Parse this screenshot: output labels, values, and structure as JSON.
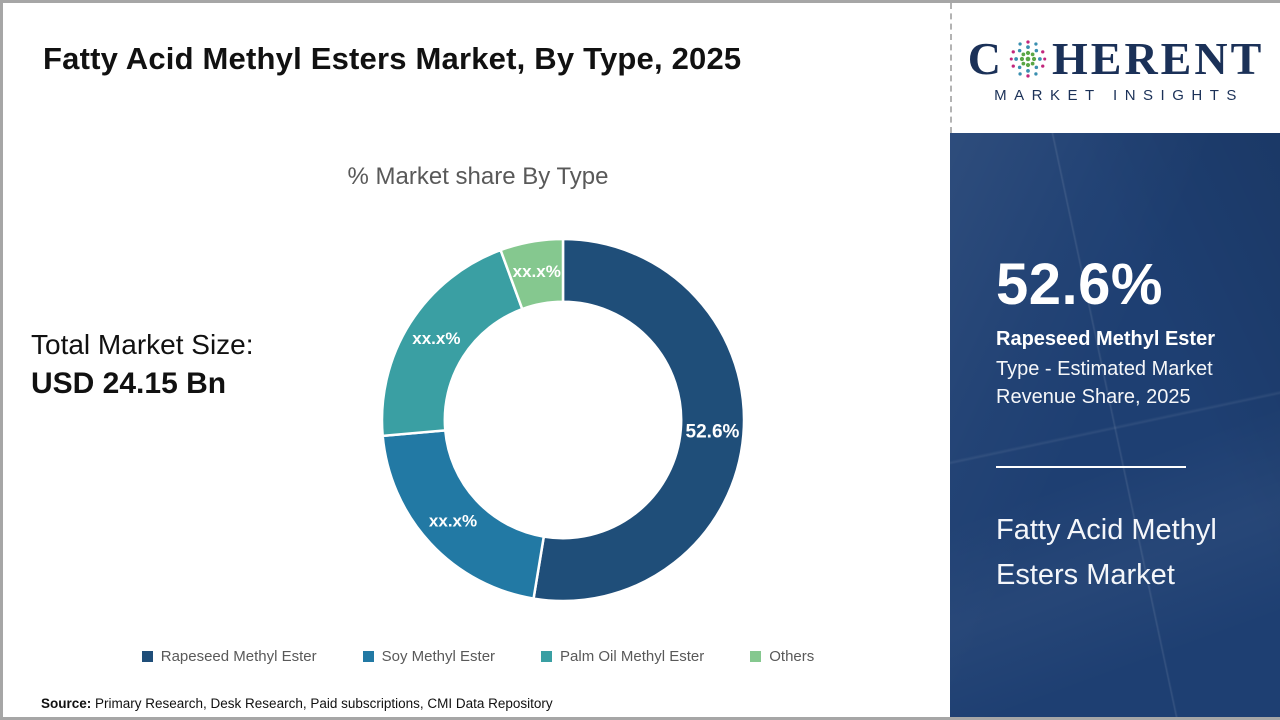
{
  "header": {
    "title": "Fatty Acid Methyl Esters Market, By Type, 2025"
  },
  "logo": {
    "word_start": "C",
    "word_end": "HERENT",
    "subtitle": "MARKET INSIGHTS",
    "brand_color": "#1b3158"
  },
  "chart_data": {
    "type": "pie",
    "donut": true,
    "title": "% Market share By Type",
    "inner_ratio": 0.653,
    "start_angle_deg": 0,
    "direction": "clockwise",
    "legend_position": "bottom",
    "segments": [
      {
        "label": "Rapeseed Methyl Ester",
        "value": 52.6,
        "display": "52.6%",
        "color": "#1f4e79"
      },
      {
        "label": "Soy Methyl Ester",
        "value": 21.0,
        "display": "xx.x%",
        "color": "#2279a4"
      },
      {
        "label": "Palm Oil Methyl Ester",
        "value": 20.8,
        "display": "xx.x%",
        "color": "#3a9fa3"
      },
      {
        "label": "Others",
        "value": 5.6,
        "display": "xx.x%",
        "color": "#85c88f"
      }
    ]
  },
  "market_size": {
    "label": "Total Market Size:",
    "value": "USD 24.15 Bn"
  },
  "sidebar": {
    "panel_bg": "#1e3f72",
    "stat_value": "52.6%",
    "stat_label_bold": "Rapeseed Methyl Ester",
    "stat_label_rest": "Type - Estimated Market Revenue Share, 2025",
    "panel_title": "Fatty Acid Methyl Esters Market"
  },
  "source": {
    "label": "Source:",
    "text": " Primary Research, Desk Research, Paid subscriptions, CMI Data Repository"
  }
}
